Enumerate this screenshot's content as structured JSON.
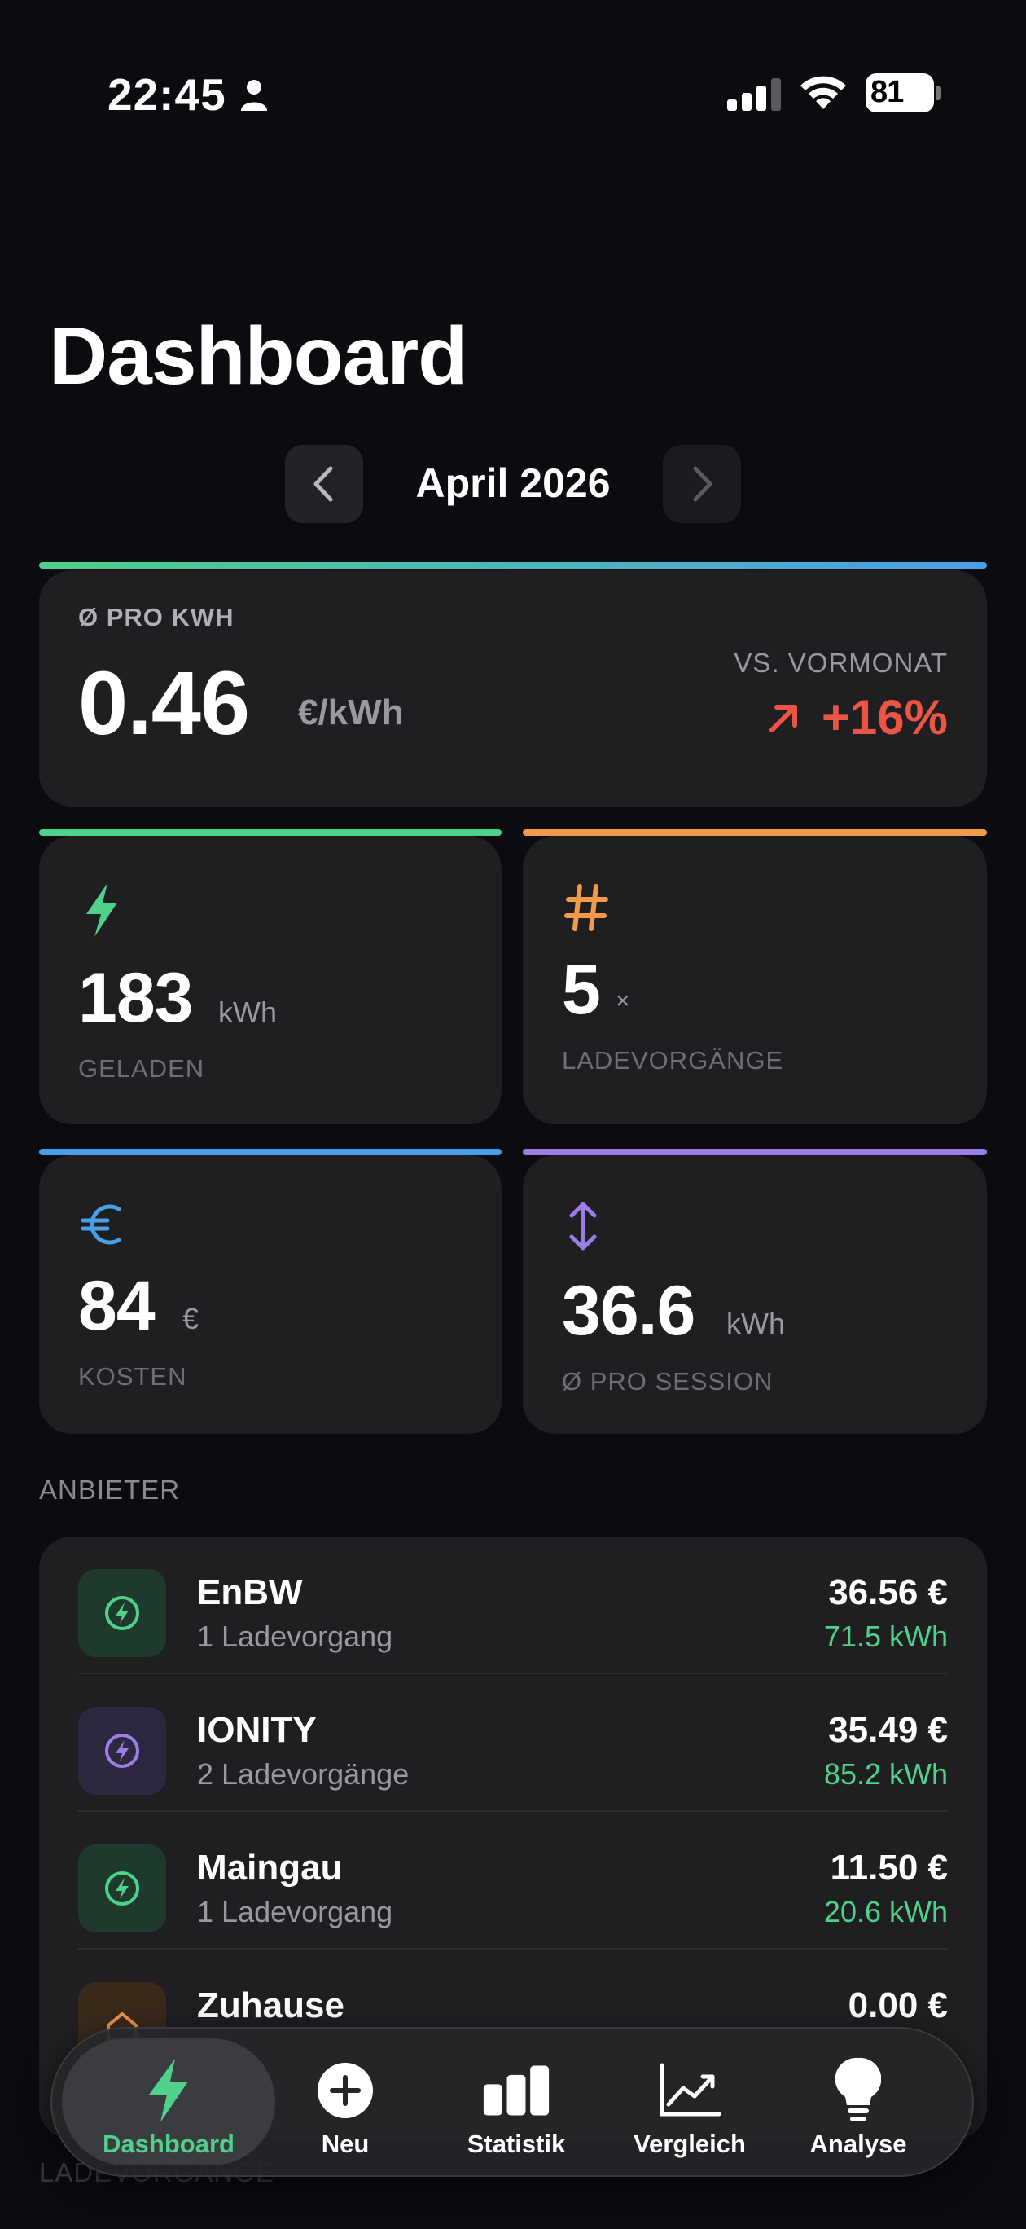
{
  "status_bar": {
    "time": "22:45",
    "battery": "81"
  },
  "header": {
    "title": "Dashboard"
  },
  "month_nav": {
    "label": "April 2026"
  },
  "price_card": {
    "label": "Ø PRO KWH",
    "value": "0.46",
    "unit": "€/kWh",
    "compare_label": "VS. VORMONAT",
    "compare_value": "+16%"
  },
  "stats": [
    {
      "value": "183",
      "unit": "kWh",
      "label": "GELADEN",
      "icon": "bolt-icon",
      "color": "#4fd08b"
    },
    {
      "value": "5",
      "unit": "×",
      "label": "LADEVORGÄNGE",
      "icon": "hash-icon",
      "color": "#f29a4a"
    },
    {
      "value": "84",
      "unit": "€",
      "label": "KOSTEN",
      "icon": "euro-icon",
      "color": "#4a9ee8"
    },
    {
      "value": "36.6",
      "unit": "kWh",
      "label": "Ø PRO SESSION",
      "icon": "up-down-arrows-icon",
      "color": "#9b7fe6"
    }
  ],
  "providers_section": {
    "title": "ANBIETER"
  },
  "providers": [
    {
      "name": "EnBW",
      "sessions": "1 Ladevorgang",
      "cost": "36.56 €",
      "kwh": "71.5 kWh"
    },
    {
      "name": "IONITY",
      "sessions": "2 Ladevorgänge",
      "cost": "35.49 €",
      "kwh": "85.2 kWh"
    },
    {
      "name": "Maingau",
      "sessions": "1 Ladevorgang",
      "cost": "11.50 €",
      "kwh": "20.6 kWh"
    },
    {
      "name": "Zuhause",
      "sessions": "",
      "cost": "0.00 €",
      "kwh": ""
    }
  ],
  "next_section": {
    "title": "LADEVORGÄNGE"
  },
  "tab_bar": {
    "tabs": [
      {
        "label": "Dashboard",
        "icon": "bolt-icon",
        "active": true
      },
      {
        "label": "Neu",
        "icon": "plus-circle-icon"
      },
      {
        "label": "Statistik",
        "icon": "bar-chart-icon"
      },
      {
        "label": "Vergleich",
        "icon": "trend-chart-icon"
      },
      {
        "label": "Analyse",
        "icon": "lightbulb-icon"
      }
    ]
  },
  "colors": {
    "accent_green": "#4fd08b",
    "accent_orange": "#f29a4a",
    "accent_blue": "#4a9ee8",
    "accent_purple": "#9b7fe6",
    "negative_red": "#ec5546",
    "background": "#0b0c10",
    "card": "#1f1f21"
  }
}
